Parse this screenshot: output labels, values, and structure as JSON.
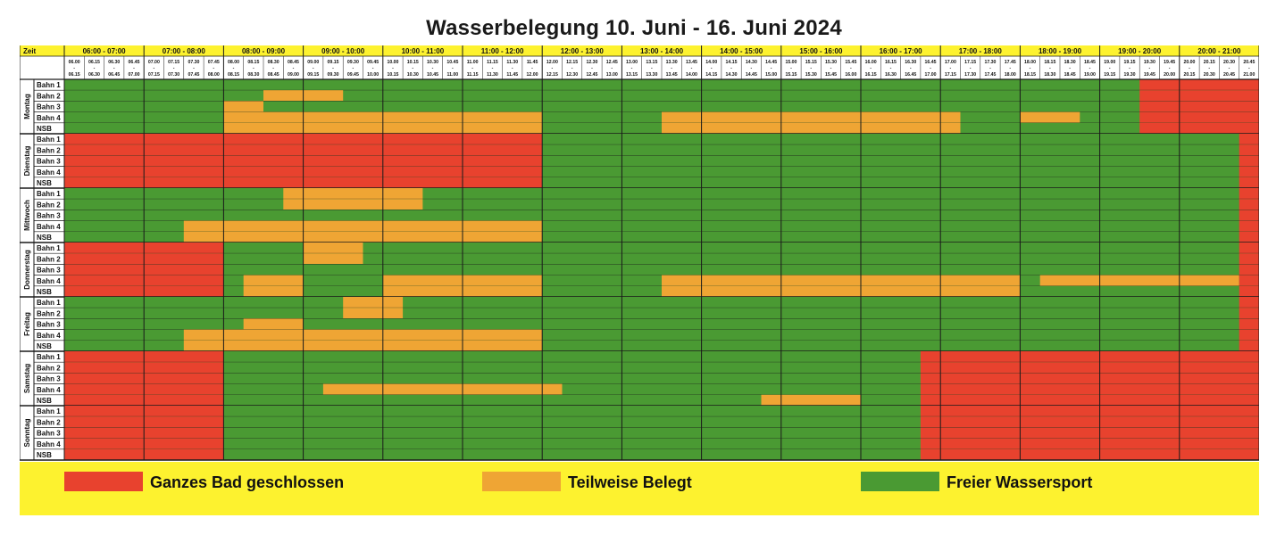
{
  "title": "Wasserbelegung 10. Juni - 16. Juni 2024",
  "corner_label": "Zeit",
  "colors": {
    "closed": "#e8422e",
    "partial": "#efa534",
    "free": "#4a9a33",
    "header": "#fdf22f",
    "grid": "#1a1a1a"
  },
  "hours": [
    "06:00 - 07:00",
    "07:00 - 08:00",
    "08:00 - 09:00",
    "09:00 - 10:00",
    "10:00 - 11:00",
    "11:00 - 12:00",
    "12:00 - 13:00",
    "13:00 - 14:00",
    "14:00 - 15:00",
    "15:00 - 16:00",
    "16:00 - 17:00",
    "17:00 - 18:00",
    "18:00 - 19:00",
    "19:00 - 20:00",
    "20:00 - 21:00"
  ],
  "slots": [
    {
      "start": "06.00",
      "end": "06.15"
    },
    {
      "start": "06.15",
      "end": "06.30"
    },
    {
      "start": "06.30",
      "end": "06.45"
    },
    {
      "start": "06.45",
      "end": "07.00"
    },
    {
      "start": "07.00",
      "end": "07.15"
    },
    {
      "start": "07.15",
      "end": "07.30"
    },
    {
      "start": "07.30",
      "end": "07.45"
    },
    {
      "start": "07.45",
      "end": "08.00"
    },
    {
      "start": "08.00",
      "end": "08.15"
    },
    {
      "start": "08.15",
      "end": "08.30"
    },
    {
      "start": "08.30",
      "end": "08.45"
    },
    {
      "start": "08.45",
      "end": "09.00"
    },
    {
      "start": "09.00",
      "end": "09.15"
    },
    {
      "start": "09.15",
      "end": "09.30"
    },
    {
      "start": "09.30",
      "end": "09.45"
    },
    {
      "start": "09.45",
      "end": "10.00"
    },
    {
      "start": "10.00",
      "end": "10.15"
    },
    {
      "start": "10.15",
      "end": "10.30"
    },
    {
      "start": "10.30",
      "end": "10.45"
    },
    {
      "start": "10.45",
      "end": "11.00"
    },
    {
      "start": "11.00",
      "end": "11.15"
    },
    {
      "start": "11.15",
      "end": "11.30"
    },
    {
      "start": "11.30",
      "end": "11.45"
    },
    {
      "start": "11.45",
      "end": "12.00"
    },
    {
      "start": "12.00",
      "end": "12.15"
    },
    {
      "start": "12.15",
      "end": "12.30"
    },
    {
      "start": "12.30",
      "end": "12.45"
    },
    {
      "start": "12.45",
      "end": "13.00"
    },
    {
      "start": "13.00",
      "end": "13.15"
    },
    {
      "start": "13.15",
      "end": "13.30"
    },
    {
      "start": "13.30",
      "end": "13.45"
    },
    {
      "start": "13.45",
      "end": "14.00"
    },
    {
      "start": "14.00",
      "end": "14.15"
    },
    {
      "start": "14.15",
      "end": "14.30"
    },
    {
      "start": "14.30",
      "end": "14.45"
    },
    {
      "start": "14.45",
      "end": "15.00"
    },
    {
      "start": "15.00",
      "end": "15.15"
    },
    {
      "start": "15.15",
      "end": "15.30"
    },
    {
      "start": "15.30",
      "end": "15.45"
    },
    {
      "start": "15.45",
      "end": "16.00"
    },
    {
      "start": "16.00",
      "end": "16.15"
    },
    {
      "start": "16.15",
      "end": "16.30"
    },
    {
      "start": "16.30",
      "end": "16.45"
    },
    {
      "start": "16.45",
      "end": "17.00"
    },
    {
      "start": "17.00",
      "end": "17.15"
    },
    {
      "start": "17.15",
      "end": "17.30"
    },
    {
      "start": "17.30",
      "end": "17.45"
    },
    {
      "start": "17.45",
      "end": "18.00"
    },
    {
      "start": "18.00",
      "end": "18.15"
    },
    {
      "start": "18.15",
      "end": "18.30"
    },
    {
      "start": "18.30",
      "end": "18.45"
    },
    {
      "start": "18.45",
      "end": "19.00"
    },
    {
      "start": "19.00",
      "end": "19.15"
    },
    {
      "start": "19.15",
      "end": "19.30"
    },
    {
      "start": "19.30",
      "end": "19.45"
    },
    {
      "start": "19.45",
      "end": "20.00"
    },
    {
      "start": "20.00",
      "end": "20.15"
    },
    {
      "start": "20.15",
      "end": "20.30"
    },
    {
      "start": "20.30",
      "end": "20.45"
    },
    {
      "start": "20.45",
      "end": "21.00"
    }
  ],
  "lanes": [
    "Bahn 1",
    "Bahn 2",
    "Bahn 3",
    "Bahn 4",
    "NSB"
  ],
  "days": [
    {
      "name": "Montag",
      "rows": [
        {
          "lane": "Bahn 1",
          "closed": [
            [
              54,
              60
            ]
          ],
          "partial": []
        },
        {
          "lane": "Bahn 2",
          "closed": [
            [
              54,
              60
            ]
          ],
          "partial": [
            [
              10,
              14
            ]
          ]
        },
        {
          "lane": "Bahn 3",
          "closed": [
            [
              54,
              60
            ]
          ],
          "partial": [
            [
              8,
              10
            ]
          ]
        },
        {
          "lane": "Bahn 4",
          "closed": [
            [
              54,
              60
            ]
          ],
          "partial": [
            [
              8,
              24
            ],
            [
              30,
              45
            ],
            [
              48,
              51
            ]
          ]
        },
        {
          "lane": "NSB",
          "closed": [
            [
              54,
              60
            ]
          ],
          "partial": [
            [
              8,
              24
            ],
            [
              30,
              45
            ]
          ]
        }
      ]
    },
    {
      "name": "Dienstag",
      "rows": [
        {
          "lane": "Bahn 1",
          "closed": [
            [
              0,
              24
            ],
            [
              59,
              60
            ]
          ],
          "partial": []
        },
        {
          "lane": "Bahn 2",
          "closed": [
            [
              0,
              24
            ],
            [
              59,
              60
            ]
          ],
          "partial": []
        },
        {
          "lane": "Bahn 3",
          "closed": [
            [
              0,
              24
            ],
            [
              59,
              60
            ]
          ],
          "partial": []
        },
        {
          "lane": "Bahn 4",
          "closed": [
            [
              0,
              24
            ],
            [
              59,
              60
            ]
          ],
          "partial": []
        },
        {
          "lane": "NSB",
          "closed": [
            [
              0,
              24
            ],
            [
              59,
              60
            ]
          ],
          "partial": []
        }
      ]
    },
    {
      "name": "Mittwoch",
      "rows": [
        {
          "lane": "Bahn 1",
          "closed": [
            [
              59,
              60
            ]
          ],
          "partial": [
            [
              11,
              18
            ]
          ]
        },
        {
          "lane": "Bahn 2",
          "closed": [
            [
              59,
              60
            ]
          ],
          "partial": [
            [
              11,
              18
            ]
          ]
        },
        {
          "lane": "Bahn 3",
          "closed": [
            [
              59,
              60
            ]
          ],
          "partial": []
        },
        {
          "lane": "Bahn 4",
          "closed": [
            [
              59,
              60
            ]
          ],
          "partial": [
            [
              6,
              24
            ]
          ]
        },
        {
          "lane": "NSB",
          "closed": [
            [
              59,
              60
            ]
          ],
          "partial": [
            [
              6,
              24
            ]
          ]
        }
      ]
    },
    {
      "name": "Donnerstag",
      "rows": [
        {
          "lane": "Bahn 1",
          "closed": [
            [
              0,
              8
            ],
            [
              59,
              60
            ]
          ],
          "partial": [
            [
              12,
              15
            ]
          ]
        },
        {
          "lane": "Bahn 2",
          "closed": [
            [
              0,
              8
            ],
            [
              59,
              60
            ]
          ],
          "partial": [
            [
              12,
              15
            ]
          ]
        },
        {
          "lane": "Bahn 3",
          "closed": [
            [
              0,
              8
            ],
            [
              59,
              60
            ]
          ],
          "partial": []
        },
        {
          "lane": "Bahn 4",
          "closed": [
            [
              0,
              8
            ],
            [
              59,
              60
            ]
          ],
          "partial": [
            [
              9,
              12
            ],
            [
              16,
              24
            ],
            [
              30,
              48
            ],
            [
              49,
              59
            ]
          ]
        },
        {
          "lane": "NSB",
          "closed": [
            [
              0,
              8
            ],
            [
              59,
              60
            ]
          ],
          "partial": [
            [
              9,
              12
            ],
            [
              16,
              24
            ],
            [
              30,
              48
            ]
          ]
        }
      ]
    },
    {
      "name": "Freitag",
      "rows": [
        {
          "lane": "Bahn 1",
          "closed": [
            [
              59,
              60
            ]
          ],
          "partial": [
            [
              14,
              17
            ]
          ]
        },
        {
          "lane": "Bahn 2",
          "closed": [
            [
              59,
              60
            ]
          ],
          "partial": [
            [
              14,
              17
            ]
          ]
        },
        {
          "lane": "Bahn 3",
          "closed": [
            [
              59,
              60
            ]
          ],
          "partial": [
            [
              9,
              12
            ]
          ]
        },
        {
          "lane": "Bahn 4",
          "closed": [
            [
              59,
              60
            ]
          ],
          "partial": [
            [
              6,
              24
            ]
          ]
        },
        {
          "lane": "NSB",
          "closed": [
            [
              59,
              60
            ]
          ],
          "partial": [
            [
              6,
              24
            ]
          ]
        }
      ]
    },
    {
      "name": "Samstag",
      "rows": [
        {
          "lane": "Bahn 1",
          "closed": [
            [
              0,
              8
            ],
            [
              43,
              60
            ]
          ],
          "partial": []
        },
        {
          "lane": "Bahn 2",
          "closed": [
            [
              0,
              8
            ],
            [
              43,
              60
            ]
          ],
          "partial": []
        },
        {
          "lane": "Bahn 3",
          "closed": [
            [
              0,
              8
            ],
            [
              43,
              60
            ]
          ],
          "partial": []
        },
        {
          "lane": "Bahn 4",
          "closed": [
            [
              0,
              8
            ],
            [
              43,
              60
            ]
          ],
          "partial": [
            [
              13,
              25
            ]
          ]
        },
        {
          "lane": "NSB",
          "closed": [
            [
              0,
              8
            ],
            [
              43,
              60
            ]
          ],
          "partial": [
            [
              35,
              40
            ]
          ]
        }
      ]
    },
    {
      "name": "Sonntag",
      "rows": [
        {
          "lane": "Bahn 1",
          "closed": [
            [
              0,
              8
            ],
            [
              43,
              60
            ]
          ],
          "partial": []
        },
        {
          "lane": "Bahn 2",
          "closed": [
            [
              0,
              8
            ],
            [
              43,
              60
            ]
          ],
          "partial": []
        },
        {
          "lane": "Bahn 3",
          "closed": [
            [
              0,
              8
            ],
            [
              43,
              60
            ]
          ],
          "partial": []
        },
        {
          "lane": "Bahn 4",
          "closed": [
            [
              0,
              8
            ],
            [
              43,
              60
            ]
          ],
          "partial": []
        },
        {
          "lane": "NSB",
          "closed": [
            [
              0,
              8
            ],
            [
              43,
              60
            ]
          ],
          "partial": []
        }
      ]
    }
  ],
  "legend": [
    {
      "key": "closed",
      "label": "Ganzes Bad geschlossen"
    },
    {
      "key": "partial",
      "label": "Teilweise Belegt"
    },
    {
      "key": "free",
      "label": "Freier Wassersport"
    }
  ]
}
